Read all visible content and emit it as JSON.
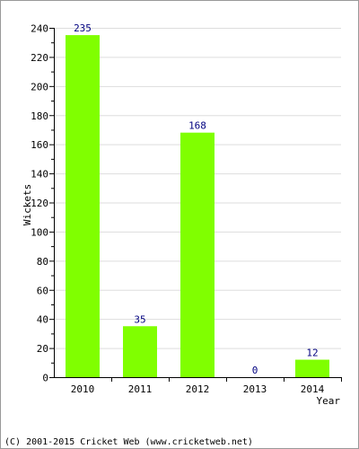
{
  "chart_data": {
    "type": "bar",
    "categories": [
      "2010",
      "2011",
      "2012",
      "2013",
      "2014"
    ],
    "values": [
      235,
      35,
      168,
      0,
      12
    ],
    "data_labels": [
      "235",
      "35",
      "168",
      "0",
      "12"
    ],
    "title": "",
    "xlabel": "Year",
    "ylabel": "Wickets",
    "ylim": [
      0,
      240
    ],
    "yticks": [
      0,
      20,
      40,
      60,
      80,
      100,
      120,
      140,
      160,
      180,
      200,
      220,
      240
    ],
    "grid": true,
    "bar_color": "#80ff00",
    "label_color": "#000080",
    "grid_color": "#dddddd"
  },
  "footer": {
    "text": "(C) 2001-2015 Cricket Web (www.cricketweb.net)"
  }
}
